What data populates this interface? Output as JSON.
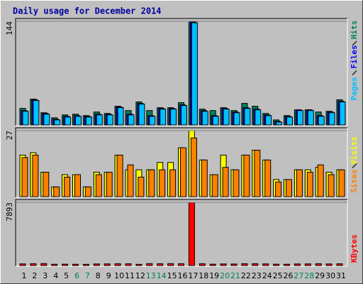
{
  "chart_data": [
    {
      "type": "bar",
      "title": "Daily usage for December 2014",
      "ylim": [
        0,
        144
      ],
      "yticks": [
        144
      ],
      "series": [
        {
          "name": "Hits",
          "color": "#00805c",
          "values": [
            23,
            36,
            17,
            10,
            14,
            15,
            13,
            18,
            16,
            26,
            20,
            32,
            20,
            24,
            24,
            31,
            144,
            22,
            20,
            24,
            20,
            30,
            26,
            16,
            7,
            13,
            21,
            21,
            18,
            19,
            35
          ]
        },
        {
          "name": "Files",
          "color": "#0000ff",
          "values": [
            20,
            35,
            16,
            8,
            12,
            13,
            12,
            15,
            15,
            25,
            15,
            30,
            13,
            23,
            23,
            28,
            143,
            20,
            13,
            23,
            18,
            24,
            22,
            14,
            5,
            12,
            21,
            21,
            13,
            18,
            33
          ]
        },
        {
          "name": "Pages",
          "color": "#00c0ff",
          "values": [
            19,
            34,
            15,
            7,
            11,
            12,
            11,
            14,
            14,
            24,
            14,
            29,
            12,
            22,
            22,
            27,
            142,
            19,
            12,
            22,
            17,
            23,
            21,
            13,
            4,
            11,
            20,
            20,
            12,
            17,
            32
          ]
        }
      ]
    },
    {
      "type": "bar",
      "ylim": [
        0,
        27
      ],
      "yticks": [
        27
      ],
      "series": [
        {
          "name": "Visits",
          "color": "#ffff00",
          "values": [
            17,
            18,
            10,
            4,
            9,
            9,
            4,
            10,
            10,
            17,
            11,
            11,
            11,
            14,
            14,
            20,
            27,
            15,
            9,
            17,
            11,
            17,
            19,
            15,
            7,
            7,
            11,
            11,
            12,
            10,
            11
          ]
        },
        {
          "name": "Sites",
          "color": "#ff8000",
          "values": [
            16,
            17,
            10,
            4,
            8,
            9,
            4,
            9,
            10,
            17,
            13,
            8,
            11,
            11,
            11,
            20,
            24,
            15,
            9,
            12,
            11,
            17,
            19,
            15,
            6,
            7,
            11,
            10,
            13,
            9,
            11
          ]
        }
      ]
    },
    {
      "type": "bar",
      "ylim": [
        0,
        7893
      ],
      "yticks": [
        7893
      ],
      "categories": [
        "1",
        "2",
        "3",
        "4",
        "5",
        "6",
        "7",
        "8",
        "9",
        "10",
        "11",
        "12",
        "13",
        "14",
        "15",
        "16",
        "17",
        "18",
        "19",
        "20",
        "21",
        "22",
        "23",
        "24",
        "25",
        "26",
        "27",
        "28",
        "29",
        "30",
        "31"
      ],
      "category_colors": [
        "#000000",
        "#000000",
        "#000000",
        "#000000",
        "#000000",
        "#00805c",
        "#00805c",
        "#000000",
        "#000000",
        "#000000",
        "#000000",
        "#000000",
        "#00805c",
        "#00805c",
        "#000000",
        "#000000",
        "#000000",
        "#000000",
        "#000000",
        "#00805c",
        "#00805c",
        "#000000",
        "#000000",
        "#000000",
        "#000000",
        "#000000",
        "#00805c",
        "#00805c",
        "#000000",
        "#000000",
        "#000000"
      ],
      "series": [
        {
          "name": "KBytes",
          "color": "#ff0000",
          "values": [
            210,
            230,
            250,
            160,
            170,
            160,
            150,
            200,
            210,
            230,
            220,
            150,
            240,
            230,
            240,
            230,
            7893,
            230,
            170,
            200,
            190,
            230,
            230,
            210,
            170,
            160,
            200,
            210,
            230,
            200,
            220
          ]
        }
      ]
    }
  ]
}
